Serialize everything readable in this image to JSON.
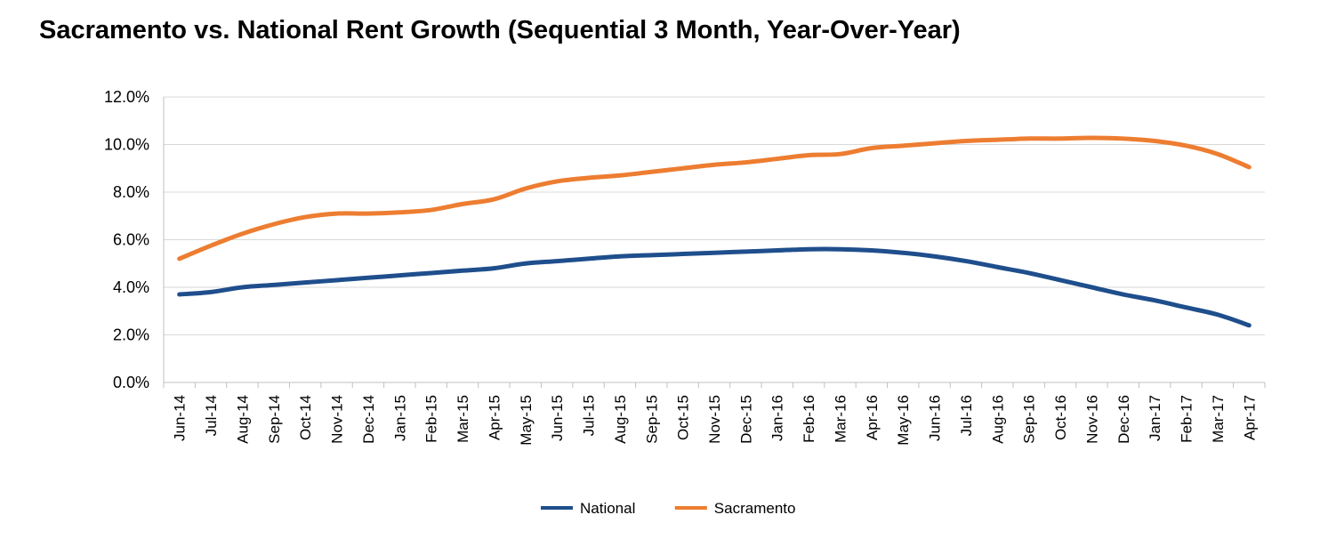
{
  "chart_data": {
    "type": "line",
    "title": "Sacramento vs. National Rent Growth (Sequential 3 Month, Year-Over-Year)",
    "categories": [
      "Jun-14",
      "Jul-14",
      "Aug-14",
      "Sep-14",
      "Oct-14",
      "Nov-14",
      "Dec-14",
      "Jan-15",
      "Feb-15",
      "Mar-15",
      "Apr-15",
      "May-15",
      "Jun-15",
      "Jul-15",
      "Aug-15",
      "Sep-15",
      "Oct-15",
      "Nov-15",
      "Dec-15",
      "Jan-16",
      "Feb-16",
      "Mar-16",
      "Apr-16",
      "May-16",
      "Jun-16",
      "Jul-16",
      "Aug-16",
      "Sep-16",
      "Oct-16",
      "Nov-16",
      "Dec-16",
      "Jan-17",
      "Feb-17",
      "Mar-17",
      "Apr-17"
    ],
    "series": [
      {
        "name": "National",
        "color": "#1f4e8c",
        "values": [
          3.7,
          3.8,
          4.0,
          4.1,
          4.2,
          4.3,
          4.4,
          4.5,
          4.6,
          4.7,
          4.8,
          5.0,
          5.1,
          5.2,
          5.3,
          5.35,
          5.4,
          5.45,
          5.5,
          5.55,
          5.6,
          5.6,
          5.55,
          5.45,
          5.3,
          5.1,
          4.85,
          4.6,
          4.3,
          4.0,
          3.7,
          3.45,
          3.15,
          2.85,
          2.4
        ]
      },
      {
        "name": "Sacramento",
        "color": "#ed7d31",
        "values": [
          5.2,
          5.75,
          6.25,
          6.65,
          6.95,
          7.1,
          7.1,
          7.15,
          7.25,
          7.5,
          7.7,
          8.15,
          8.45,
          8.6,
          8.7,
          8.85,
          9.0,
          9.15,
          9.25,
          9.4,
          9.55,
          9.6,
          9.85,
          9.95,
          10.05,
          10.15,
          10.2,
          10.25,
          10.25,
          10.28,
          10.25,
          10.15,
          9.95,
          9.6,
          9.05
        ]
      }
    ],
    "y_ticks": [
      "0.0%",
      "2.0%",
      "4.0%",
      "6.0%",
      "8.0%",
      "10.0%",
      "12.0%"
    ],
    "ylim": [
      0,
      12
    ],
    "grid": true,
    "legend": "bottom-center"
  }
}
